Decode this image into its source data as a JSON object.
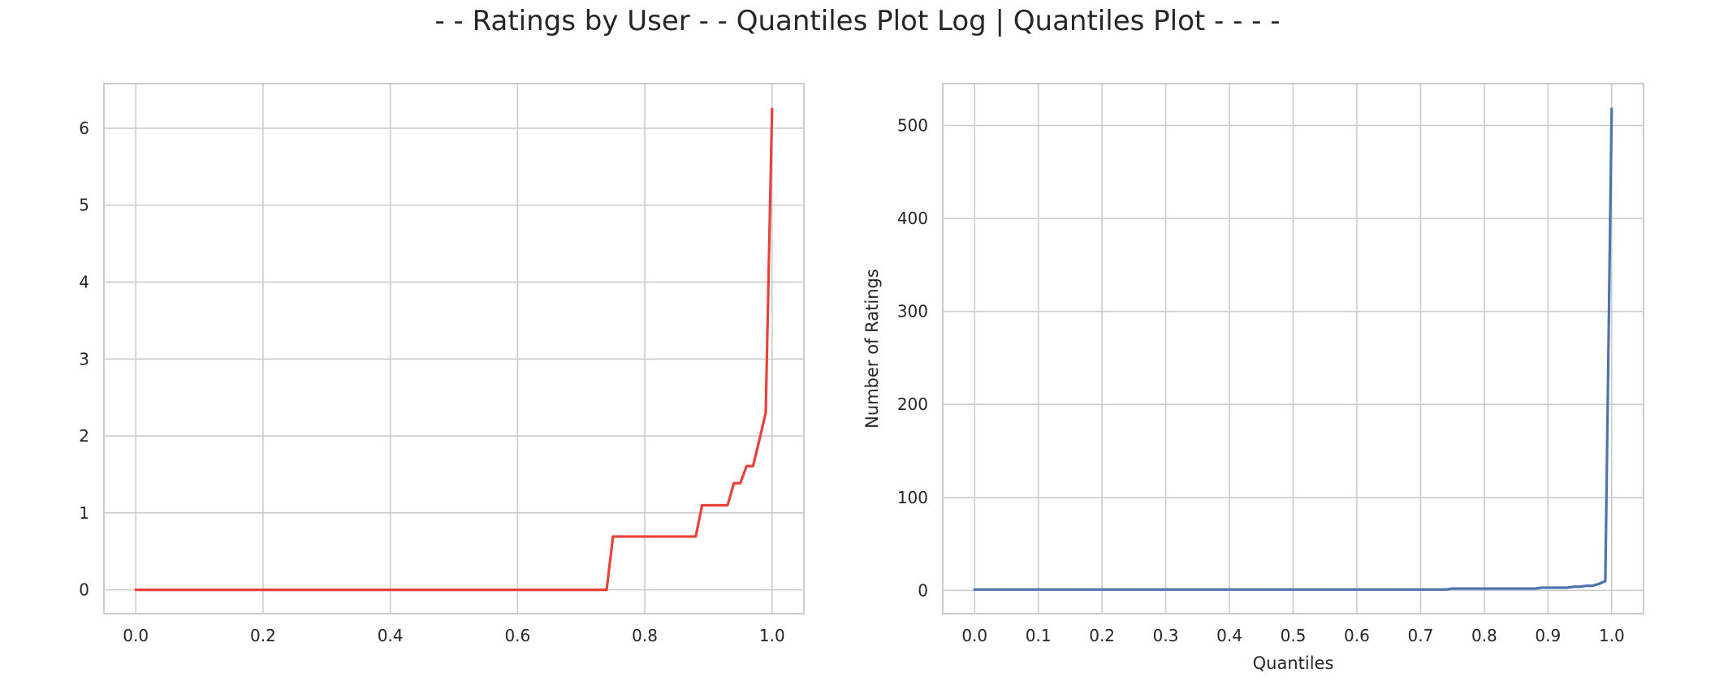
{
  "figure": {
    "suptitle": "- - Ratings by User - - Quantiles Plot Log | Quantiles Plot - - - -"
  },
  "chart_data": [
    {
      "type": "line",
      "title": "",
      "xlabel": "",
      "ylabel": "",
      "xlim": [
        -0.05,
        1.05
      ],
      "ylim": [
        -0.31,
        6.58
      ],
      "xticks": [
        0.0,
        0.2,
        0.4,
        0.6,
        0.8,
        1.0
      ],
      "xtick_labels": [
        "0.0",
        "0.2",
        "0.4",
        "0.6",
        "0.8",
        "1.0"
      ],
      "yticks": [
        0,
        1,
        2,
        3,
        4,
        5,
        6
      ],
      "ytick_labels": [
        "0",
        "1",
        "2",
        "3",
        "4",
        "5",
        "6"
      ],
      "grid": true,
      "color": "#e8413a",
      "series": [
        {
          "x": [
            0.0,
            0.74,
            0.75,
            0.88,
            0.89,
            0.93,
            0.94,
            0.95,
            0.96,
            0.97,
            0.98,
            0.99,
            1.0
          ],
          "y": [
            0.0,
            0.0,
            0.693,
            0.693,
            1.099,
            1.099,
            1.386,
            1.386,
            1.609,
            1.609,
            1.946,
            2.303,
            6.25
          ]
        }
      ]
    },
    {
      "type": "line",
      "title": "",
      "xlabel": "Quantiles",
      "ylabel": "Number of Ratings",
      "xlim": [
        -0.05,
        1.05
      ],
      "ylim": [
        -25,
        545
      ],
      "xticks": [
        0.0,
        0.1,
        0.2,
        0.3,
        0.4,
        0.5,
        0.6,
        0.7,
        0.8,
        0.9,
        1.0
      ],
      "xtick_labels": [
        "0.0",
        "0.1",
        "0.2",
        "0.3",
        "0.4",
        "0.5",
        "0.6",
        "0.7",
        "0.8",
        "0.9",
        "1.0"
      ],
      "yticks": [
        0,
        100,
        200,
        300,
        400,
        500
      ],
      "ytick_labels": [
        "0",
        "100",
        "200",
        "300",
        "400",
        "500"
      ],
      "grid": true,
      "color": "#4c72b0",
      "series": [
        {
          "x": [
            0.0,
            0.74,
            0.75,
            0.88,
            0.89,
            0.93,
            0.94,
            0.95,
            0.96,
            0.97,
            0.98,
            0.99,
            1.0
          ],
          "y": [
            1,
            1,
            2,
            2,
            3,
            3,
            4,
            4,
            5,
            5,
            7,
            10,
            518
          ]
        }
      ]
    }
  ]
}
